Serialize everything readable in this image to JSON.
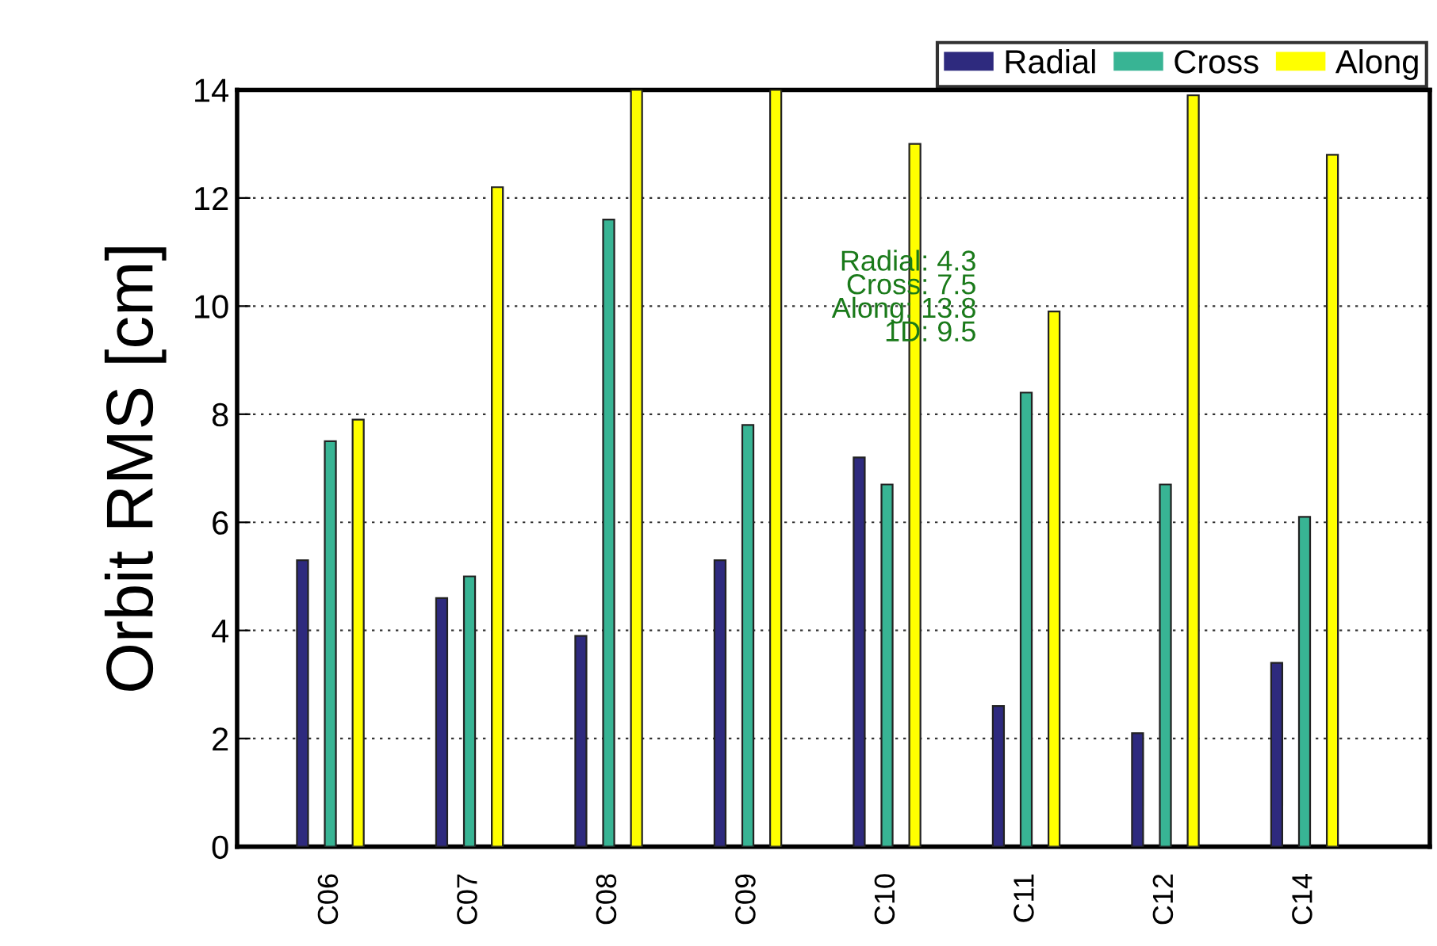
{
  "chart_data": {
    "type": "bar",
    "ylabel": "Orbit RMS [cm]",
    "categories": [
      "C06",
      "C07",
      "C08",
      "C09",
      "C10",
      "C11",
      "C12",
      "C14"
    ],
    "series": [
      {
        "name": "Radial",
        "color": "#2e2a7e",
        "values": [
          5.3,
          4.6,
          3.9,
          5.3,
          7.2,
          2.6,
          2.1,
          3.4
        ]
      },
      {
        "name": "Cross",
        "color": "#38b494",
        "values": [
          7.5,
          5.0,
          11.6,
          7.8,
          6.7,
          8.4,
          6.7,
          6.1
        ]
      },
      {
        "name": "Along",
        "color": "#ffff00",
        "values": [
          7.9,
          12.2,
          14,
          14,
          13.0,
          9.9,
          13.9,
          12.8
        ]
      }
    ],
    "ylim": [
      0,
      14
    ],
    "yticks": [
      0,
      2,
      4,
      6,
      8,
      10,
      12,
      14
    ],
    "grid": "y",
    "legend": "top right",
    "annotations": [
      "Radial: 4.3\nCross: 7.5\nAlong: 13.8\n1D: 9.5"
    ]
  }
}
